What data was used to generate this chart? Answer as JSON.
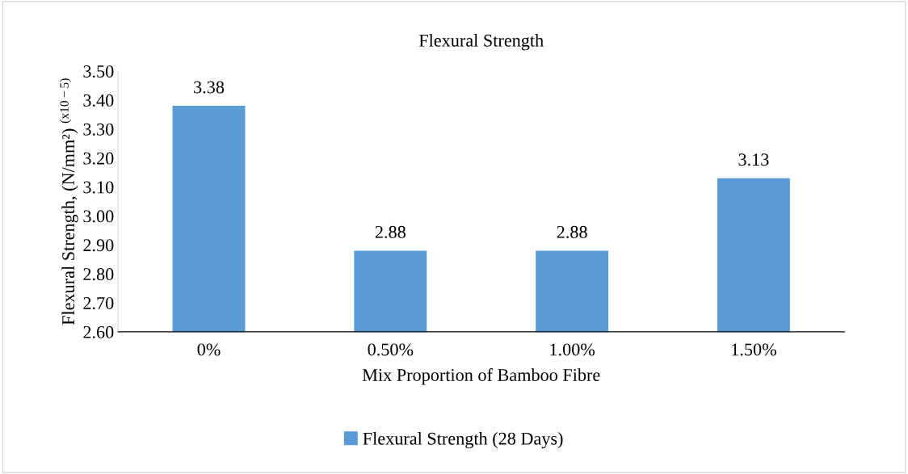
{
  "chart_data": {
    "type": "bar",
    "title": "Flexural Strength",
    "xlabel": "Mix Proportion of Bamboo Fibre",
    "ylabel": "Flexural Strength, (N/mm²) $^{(x10−5)}$",
    "categories": [
      "0%",
      "0.50%",
      "1.00%",
      "1.50%"
    ],
    "series": [
      {
        "name": "Flexural Strength (28 Days)",
        "color": "#5b9bd5",
        "values": [
          3.38,
          2.88,
          2.88,
          3.13
        ]
      }
    ],
    "ylim": [
      2.6,
      3.5
    ],
    "yticks": [
      {
        "value": 2.6,
        "label": "2.60"
      },
      {
        "value": 2.7,
        "label": "2.70"
      },
      {
        "value": 2.8,
        "label": "2.80"
      },
      {
        "value": 2.9,
        "label": "2.90"
      },
      {
        "value": 3.0,
        "label": "3.00"
      },
      {
        "value": 3.1,
        "label": "3.10"
      },
      {
        "value": 3.2,
        "label": "3.20"
      },
      {
        "value": 3.3,
        "label": "3.30"
      },
      {
        "value": 3.4,
        "label": "3.40"
      },
      {
        "value": 3.5,
        "label": "3.50"
      }
    ],
    "data_labels": true,
    "grid": false,
    "legend": "bottom"
  }
}
